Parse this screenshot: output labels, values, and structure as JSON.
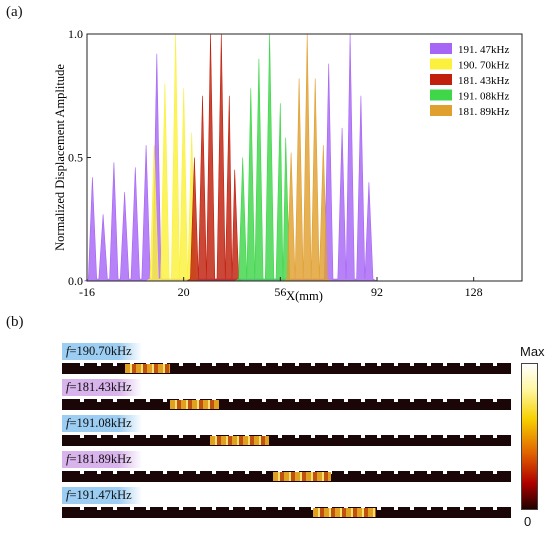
{
  "panel_a_label": "(a)",
  "panel_b_label": "(b)",
  "chart_data": {
    "type": "area",
    "xlabel": "X(mm)",
    "ylabel": "Normalized Displacement Amplitude",
    "xlim": [
      -16,
      146
    ],
    "ylim": [
      0,
      1.0
    ],
    "x_ticks": [
      -16,
      20,
      56,
      92,
      128
    ],
    "y_ticks": [
      0.0,
      0.5,
      1.0
    ],
    "y_tick_labels": [
      "0.0",
      "0.5",
      "1.0"
    ],
    "legend_position": "top-right",
    "grid": false,
    "series": [
      {
        "name": "191. 47kHz",
        "color": "#a765f5",
        "peaks": [
          [
            -14,
            0.42
          ],
          [
            -10,
            0.27
          ],
          [
            -6,
            0.48
          ],
          [
            -2,
            0.36
          ],
          [
            2,
            0.46
          ],
          [
            6,
            0.55
          ],
          [
            10,
            0.92
          ],
          [
            74,
            0.88
          ],
          [
            79,
            0.62
          ],
          [
            82,
            1.0
          ],
          [
            86,
            0.75
          ],
          [
            89,
            0.4
          ]
        ]
      },
      {
        "name": "190. 70kHz",
        "color": "#fbf13c",
        "peaks": [
          [
            9,
            0.55
          ],
          [
            13,
            0.8
          ],
          [
            17,
            1.0
          ],
          [
            20,
            0.78
          ],
          [
            23,
            0.6
          ]
        ]
      },
      {
        "name": "181. 43kHz",
        "color": "#c0200c",
        "peaks": [
          [
            24,
            0.5
          ],
          [
            27,
            0.75
          ],
          [
            30,
            1.0
          ],
          [
            34,
            1.0
          ],
          [
            37,
            0.75
          ],
          [
            39,
            0.45
          ]
        ]
      },
      {
        "name": "191. 08kHz",
        "color": "#3fd64a",
        "peaks": [
          [
            42,
            0.5
          ],
          [
            45,
            0.78
          ],
          [
            48,
            0.9
          ],
          [
            52,
            1.0
          ],
          [
            56,
            0.72
          ],
          [
            58,
            0.58
          ]
        ]
      },
      {
        "name": "181. 89kHz",
        "color": "#e0a030",
        "peaks": [
          [
            60,
            0.52
          ],
          [
            63,
            0.82
          ],
          [
            66,
            1.0
          ],
          [
            69,
            0.82
          ],
          [
            72,
            0.55
          ]
        ]
      }
    ]
  },
  "colorbar": {
    "max_label": "Max",
    "min_label": "0"
  },
  "field_maps": [
    {
      "f_symbol": "f",
      "freq": "=190.70kHz",
      "tag_color": "#9ccdf2",
      "hot_start": 0.14,
      "hot_end": 0.24
    },
    {
      "f_symbol": "f",
      "freq": "=181.43kHz",
      "tag_color": "#d9b3ec",
      "hot_start": 0.24,
      "hot_end": 0.35
    },
    {
      "f_symbol": "f",
      "freq": "=191.08kHz",
      "tag_color": "#9ccdf2",
      "hot_start": 0.33,
      "hot_end": 0.46
    },
    {
      "f_symbol": "f",
      "freq": "=181.89kHz",
      "tag_color": "#d9b3ec",
      "hot_start": 0.47,
      "hot_end": 0.6
    },
    {
      "f_symbol": "f",
      "freq": "=191.47kHz",
      "tag_color": "#9ccdf2",
      "hot_start": 0.56,
      "hot_end": 0.7
    }
  ]
}
